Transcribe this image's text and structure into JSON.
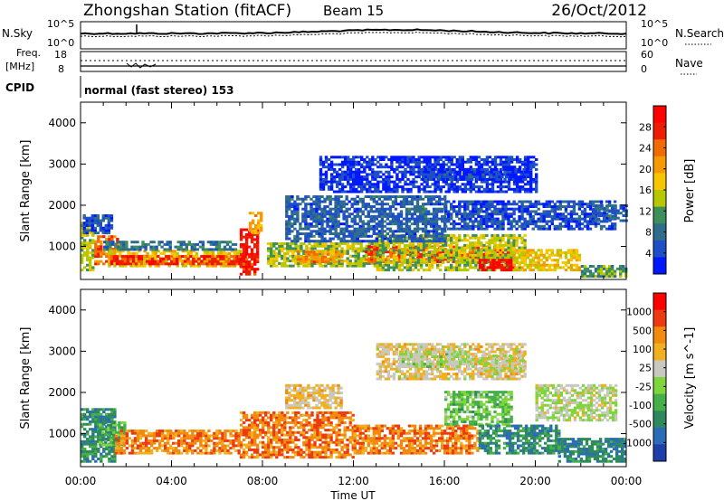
{
  "header": {
    "title": "Zhongshan Station (fitACF)",
    "beam": "Beam 15",
    "date": "26/Oct/2012"
  },
  "status": {
    "nsky_label": "N.Sky",
    "nsearch_label": "N.Search",
    "noise_left_ticks": [
      "10^5",
      "10^0"
    ],
    "noise_right_ticks": [
      "10^5",
      "10^0"
    ],
    "freq_label_line1": "Freq.",
    "freq_label_line2": "[MHz]",
    "freq_ticks": [
      "18",
      "8"
    ],
    "nave_label": "Nave",
    "nave_ticks": [
      "60",
      "0"
    ],
    "cpid_label": "CPID",
    "cpid_text": "normal (fast stereo) 153"
  },
  "chart_data": [
    {
      "type": "heatmap",
      "name": "power",
      "ylabel": "Slant Range [km]",
      "ylim": [
        200,
        4500
      ],
      "yticks": [
        1000,
        2000,
        3000,
        4000
      ],
      "xlim": [
        0,
        24
      ],
      "colorbar": {
        "label": "Power [dB]",
        "ticks": [
          "28",
          "24",
          "20",
          "16",
          "12",
          "8",
          "4"
        ],
        "colors": [
          "#0018ff",
          "#1f4fc6",
          "#2e6e8c",
          "#3f8f5a",
          "#b8c800",
          "#f7c600",
          "#f59a00",
          "#f26b00",
          "#ee1c00",
          "#ff0000"
        ]
      },
      "blobs": [
        {
          "t0": 0.0,
          "t1": 0.6,
          "r0": 400,
          "r1": 1600,
          "v": 0.45
        },
        {
          "t0": 0.6,
          "t1": 1.6,
          "r0": 550,
          "r1": 1250,
          "v": 0.75
        },
        {
          "t0": 1.2,
          "t1": 7.0,
          "r0": 500,
          "r1": 900,
          "v": 0.55
        },
        {
          "t0": 1.3,
          "t1": 7.2,
          "r0": 550,
          "r1": 750,
          "v": 0.85
        },
        {
          "t0": 1.0,
          "t1": 6.8,
          "r0": 900,
          "r1": 1100,
          "v": 0.25
        },
        {
          "t0": 0.1,
          "t1": 1.4,
          "r0": 1300,
          "r1": 1750,
          "v": 0.15
        },
        {
          "t0": 7.0,
          "t1": 7.8,
          "r0": 300,
          "r1": 1400,
          "v": 0.9
        },
        {
          "t0": 7.4,
          "t1": 8.0,
          "r0": 1300,
          "r1": 1800,
          "v": 0.6
        },
        {
          "t0": 8.2,
          "t1": 13.0,
          "r0": 500,
          "r1": 1100,
          "v": 0.45
        },
        {
          "t0": 9.5,
          "t1": 11.5,
          "r0": 600,
          "r1": 900,
          "v": 0.7
        },
        {
          "t0": 12.5,
          "t1": 19.0,
          "r0": 600,
          "r1": 1000,
          "v": 0.8
        },
        {
          "t0": 13.0,
          "t1": 19.5,
          "r0": 400,
          "r1": 1300,
          "v": 0.45
        },
        {
          "t0": 17.5,
          "t1": 19.0,
          "r0": 400,
          "r1": 700,
          "v": 0.95
        },
        {
          "t0": 19.0,
          "t1": 22.0,
          "r0": 400,
          "r1": 900,
          "v": 0.55
        },
        {
          "t0": 22.0,
          "t1": 24.0,
          "r0": 250,
          "r1": 500,
          "v": 0.35
        },
        {
          "t0": 9.0,
          "t1": 16.0,
          "r0": 1100,
          "r1": 2200,
          "v": 0.2
        },
        {
          "t0": 10.5,
          "t1": 20.0,
          "r0": 2300,
          "r1": 3200,
          "v": 0.08
        },
        {
          "t0": 15.0,
          "t1": 19.5,
          "r0": 2600,
          "r1": 2900,
          "v": 0.12
        },
        {
          "t0": 16.0,
          "t1": 23.5,
          "r0": 1400,
          "r1": 2100,
          "v": 0.15
        },
        {
          "t0": 22.5,
          "t1": 24.0,
          "r0": 1600,
          "r1": 2000,
          "v": 0.2
        }
      ]
    },
    {
      "type": "heatmap",
      "name": "velocity",
      "ylabel": "Slant Range [km]",
      "ylim": [
        200,
        4500
      ],
      "yticks": [
        1000,
        2000,
        3000,
        4000
      ],
      "xlim": [
        0,
        24
      ],
      "xticks": [
        "00:00",
        "04:00",
        "08:00",
        "12:00",
        "16:00",
        "20:00",
        "00:00"
      ],
      "xlabel": "Time UT",
      "colorbar": {
        "label": "Velocity [m s^-1]",
        "ticks": [
          "1000",
          "500",
          "100",
          "25",
          "-25",
          "-100",
          "-500",
          "-1000"
        ],
        "colors": [
          "#1e3ea8",
          "#2b6cb8",
          "#2e8a5c",
          "#45b04a",
          "#7ed63a",
          "#c8c8c0",
          "#f0b020",
          "#f28a10",
          "#ee3a10",
          "#ff0000"
        ]
      },
      "blobs": [
        {
          "t0": 0.0,
          "t1": 1.5,
          "r0": 300,
          "r1": 1600,
          "v": 0.25
        },
        {
          "t0": 0.8,
          "t1": 2.0,
          "r0": 700,
          "r1": 1300,
          "v": 0.35
        },
        {
          "t0": 1.5,
          "t1": 7.0,
          "r0": 500,
          "r1": 1100,
          "v": 0.75
        },
        {
          "t0": 7.0,
          "t1": 12.0,
          "r0": 400,
          "r1": 1500,
          "v": 0.78
        },
        {
          "t0": 9.0,
          "t1": 11.5,
          "r0": 1600,
          "r1": 2200,
          "v": 0.62
        },
        {
          "t0": 12.0,
          "t1": 17.5,
          "r0": 500,
          "r1": 1200,
          "v": 0.76
        },
        {
          "t0": 16.0,
          "t1": 19.0,
          "r0": 1200,
          "r1": 2000,
          "v": 0.4
        },
        {
          "t0": 17.5,
          "t1": 21.0,
          "r0": 500,
          "r1": 1200,
          "v": 0.25
        },
        {
          "t0": 20.0,
          "t1": 23.5,
          "r0": 1300,
          "r1": 2200,
          "v": 0.52
        },
        {
          "t0": 21.0,
          "t1": 24.0,
          "r0": 300,
          "r1": 900,
          "v": 0.22
        },
        {
          "t0": 13.0,
          "t1": 19.5,
          "r0": 2300,
          "r1": 3200,
          "v": 0.6
        },
        {
          "t0": 14.0,
          "t1": 17.0,
          "r0": 2600,
          "r1": 3000,
          "v": 0.5
        },
        {
          "t0": 17.5,
          "t1": 19.5,
          "r0": 2500,
          "r1": 2900,
          "v": 0.52
        }
      ]
    }
  ]
}
